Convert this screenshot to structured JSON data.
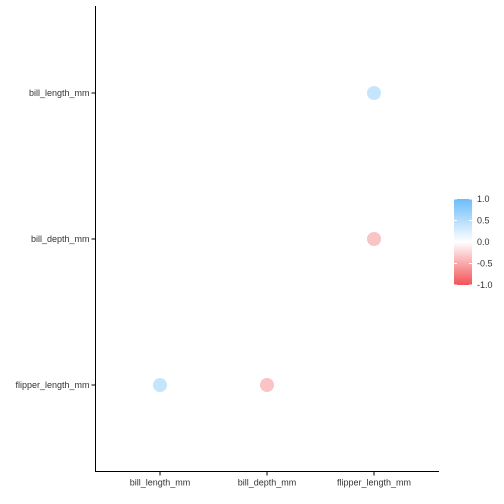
{
  "chart_data": {
    "type": "scatter",
    "title": "",
    "xlabel": "",
    "ylabel": "",
    "x_categories": [
      "bill_length_mm",
      "bill_depth_mm",
      "flipper_length_mm"
    ],
    "y_categories": [
      "bill_length_mm",
      "bill_depth_mm",
      "flipper_length_mm"
    ],
    "points": [
      {
        "x": "flipper_length_mm",
        "y": "bill_length_mm",
        "value": 0.65
      },
      {
        "x": "flipper_length_mm",
        "y": "bill_depth_mm",
        "value": -0.58
      },
      {
        "x": "bill_length_mm",
        "y": "flipper_length_mm",
        "value": 0.65
      },
      {
        "x": "bill_depth_mm",
        "y": "flipper_length_mm",
        "value": -0.58
      }
    ],
    "legend": {
      "position": "right",
      "min": -1.0,
      "max": 1.0,
      "tick_labels": [
        "1.0",
        "0.5",
        "0.0",
        "-0.5",
        "-1.0"
      ],
      "tick_values": [
        1.0,
        0.5,
        0.0,
        -0.5,
        -1.0
      ]
    },
    "colors": {
      "high": "#6bbcfb",
      "mid": "#ffffff",
      "low": "#f25257"
    },
    "grid": false
  }
}
